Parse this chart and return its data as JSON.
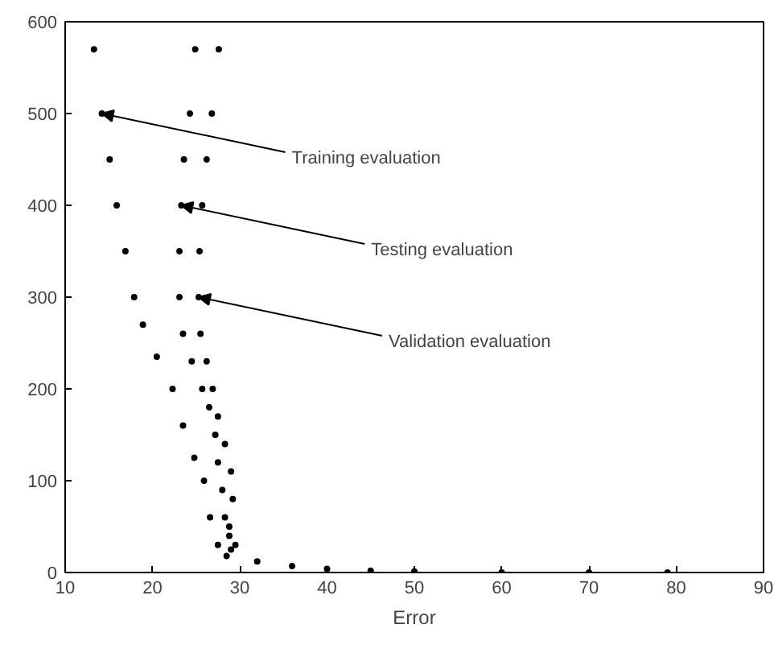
{
  "chart_data": {
    "type": "scatter",
    "xlabel": "Error",
    "xlim": [
      10,
      90
    ],
    "ylim": [
      0,
      600
    ],
    "xticks": [
      10,
      20,
      30,
      40,
      50,
      60,
      70,
      80,
      90
    ],
    "yticks": [
      0,
      100,
      200,
      300,
      400,
      500,
      600
    ],
    "grid": false,
    "marker": "circle",
    "series": [
      {
        "color": "#000000",
        "x": [
          13.3,
          14.2,
          15.1,
          15.9,
          16.9,
          17.9,
          18.9,
          20.5,
          22.3,
          23.5,
          24.8,
          25.9,
          26.6,
          27.5,
          28.5,
          32,
          36,
          40,
          45,
          50,
          60,
          70,
          79
        ],
        "values": [
          570,
          500,
          450,
          400,
          350,
          300,
          270,
          235,
          200,
          160,
          125,
          100,
          60,
          30,
          18,
          12,
          7,
          4,
          2,
          1,
          0,
          0,
          0
        ]
      },
      {
        "color": "#000000",
        "x": [
          24.9,
          24.3,
          23.6,
          23.3,
          23.1,
          23.1,
          23.5,
          24.5,
          25.7,
          26.5,
          27.2,
          27.5,
          28,
          28.3,
          28.8,
          29
        ],
        "values": [
          570,
          500,
          450,
          400,
          350,
          300,
          260,
          230,
          200,
          180,
          150,
          120,
          90,
          60,
          40,
          25
        ]
      },
      {
        "color": "#000000",
        "x": [
          27.6,
          26.8,
          26.2,
          25.7,
          25.4,
          25.3,
          25.5,
          26.2,
          26.9,
          27.5,
          28.3,
          29,
          29.2,
          28.8,
          29.5
        ],
        "values": [
          570,
          500,
          450,
          400,
          350,
          300,
          260,
          230,
          200,
          170,
          140,
          110,
          80,
          50,
          30
        ]
      }
    ],
    "annotations": [
      {
        "text": "Training evaluation",
        "x": 14.2,
        "y": 500
      },
      {
        "text": "Testing evaluation",
        "x": 23.3,
        "y": 400
      },
      {
        "text": "Validation evaluation",
        "x": 25.3,
        "y": 300
      }
    ]
  }
}
